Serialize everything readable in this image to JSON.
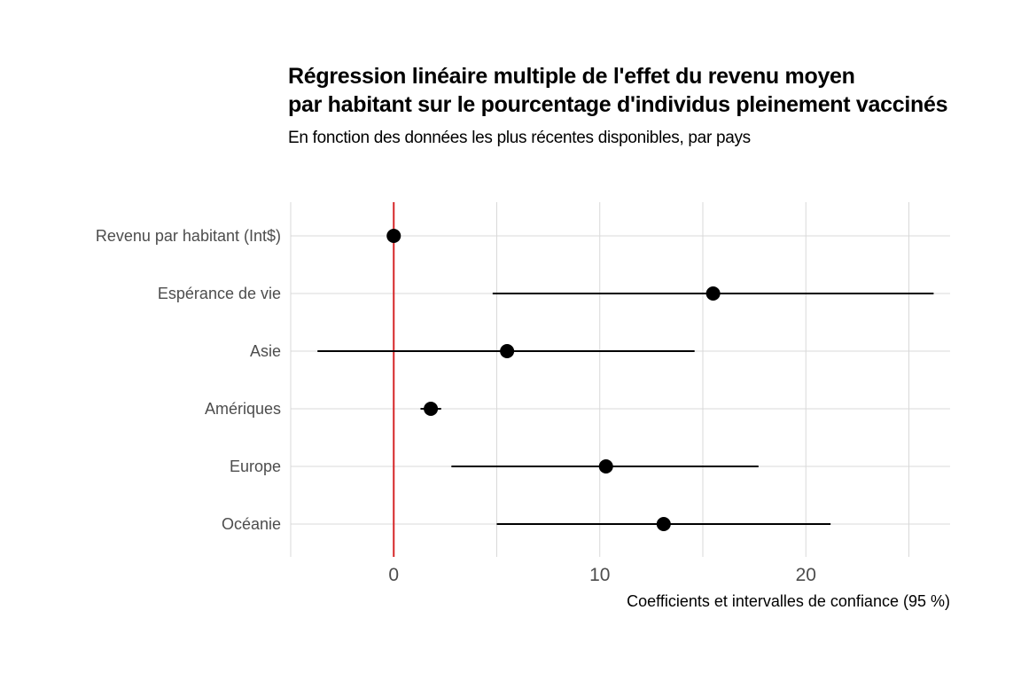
{
  "title_lines": [
    "Régression linéaire multiple de l'effet du revenu moyen",
    "par habitant sur le pourcentage d'individus pleinement vaccinés"
  ],
  "subtitle": "En fonction des données les plus récentes disponibles, par pays",
  "colors": {
    "point": "#000000",
    "interval": "#000000",
    "reference_line": "#d62728",
    "grid": "#d9d9d9",
    "axis_text": "#4d4d4d"
  },
  "chart_data": {
    "type": "scatter",
    "subtype": "coefficient-plot",
    "title": "Régression linéaire multiple de l'effet du revenu moyen par habitant sur le pourcentage d'individus pleinement vaccinés",
    "subtitle": "En fonction des données les plus récentes disponibles, par pays",
    "xlabel": "Coefficients et intervalles de confiance (95 %)",
    "ylabel": "",
    "xlim": [
      -5,
      27
    ],
    "x_ticks": [
      0,
      10,
      20
    ],
    "grid": true,
    "reference_line_x": 0,
    "categories": [
      "Revenu par habitant (Int$)",
      "Espérance de vie",
      "Asie",
      "Amériques",
      "Europe",
      "Océanie"
    ],
    "estimates": [
      0.0,
      15.5,
      5.5,
      1.8,
      10.3,
      13.1
    ],
    "ci_low": [
      -0.1,
      4.8,
      -3.7,
      1.3,
      2.8,
      5.0
    ],
    "ci_high": [
      0.1,
      26.2,
      14.6,
      2.3,
      17.7,
      21.2
    ]
  }
}
